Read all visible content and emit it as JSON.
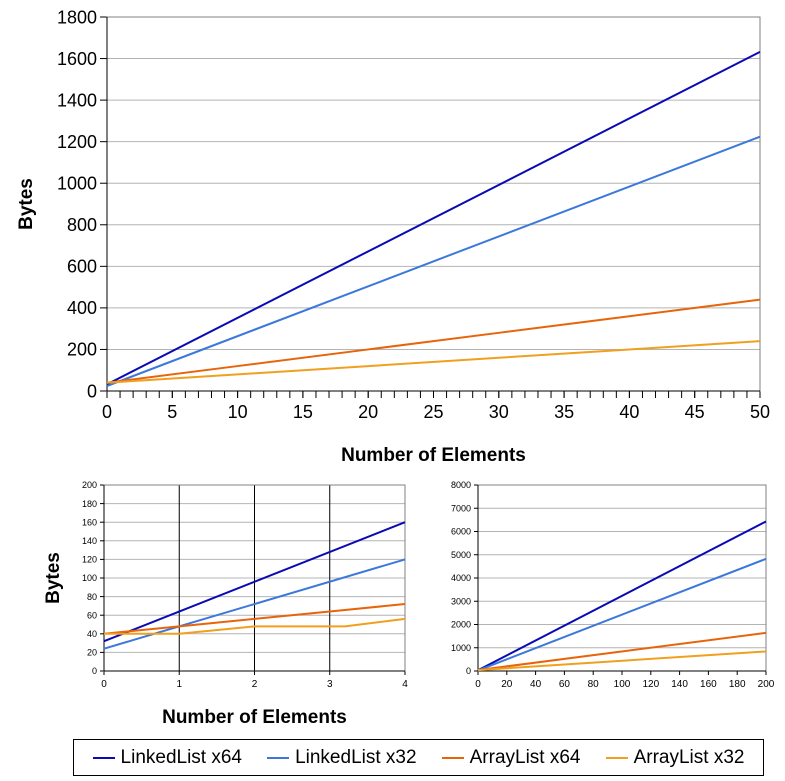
{
  "colors": {
    "linkedlist_x64": "#0a0ab4",
    "linkedlist_x32": "#3c78dc",
    "arraylist_x64": "#e8640a",
    "arraylist_x32": "#f0a01e"
  },
  "legend": {
    "items": [
      "LinkedList x64",
      "LinkedList x32",
      "ArrayList x64",
      "ArrayList x32"
    ]
  },
  "chart_data": [
    {
      "type": "line",
      "title": "",
      "xlabel": "Number of Elements",
      "ylabel": "Bytes",
      "xlim": [
        0,
        50
      ],
      "ylim": [
        0,
        1800
      ],
      "xticks": [
        "0",
        "5",
        "10",
        "15",
        "20",
        "25",
        "30",
        "35",
        "40",
        "45",
        "50"
      ],
      "yticks": [
        "0",
        "200",
        "400",
        "600",
        "800",
        "1000",
        "1200",
        "1400",
        "1600",
        "1800"
      ],
      "grid": "horizontal",
      "series": [
        {
          "name": "LinkedList x64",
          "x": [
            0,
            50
          ],
          "y": [
            32,
            1632
          ]
        },
        {
          "name": "LinkedList x32",
          "x": [
            0,
            50
          ],
          "y": [
            24,
            1224
          ]
        },
        {
          "name": "ArrayList x64",
          "x": [
            0,
            10,
            20,
            30,
            40,
            50
          ],
          "y": [
            40,
            120,
            200,
            280,
            360,
            440
          ]
        },
        {
          "name": "ArrayList x32",
          "x": [
            0,
            10,
            20,
            30,
            40,
            50
          ],
          "y": [
            40,
            80,
            120,
            160,
            200,
            240
          ]
        }
      ]
    },
    {
      "type": "line",
      "title": "",
      "xlabel": "Number of Elements",
      "ylabel": "Bytes",
      "xlim": [
        0,
        4
      ],
      "ylim": [
        0,
        200
      ],
      "xticks": [
        "0",
        "1",
        "2",
        "3",
        "4"
      ],
      "yticks": [
        "0",
        "20",
        "40",
        "60",
        "80",
        "100",
        "120",
        "140",
        "160",
        "180",
        "200"
      ],
      "grid": "both",
      "series": [
        {
          "name": "LinkedList x64",
          "x": [
            0,
            4
          ],
          "y": [
            32,
            160
          ]
        },
        {
          "name": "LinkedList x32",
          "x": [
            0,
            4
          ],
          "y": [
            24,
            120
          ]
        },
        {
          "name": "ArrayList x64",
          "x": [
            0,
            1,
            2,
            3,
            4
          ],
          "y": [
            40,
            48,
            56,
            64,
            72
          ]
        },
        {
          "name": "ArrayList x32",
          "x": [
            0,
            1,
            2,
            3.2,
            4
          ],
          "y": [
            40,
            40,
            48,
            48,
            56
          ]
        }
      ]
    },
    {
      "type": "line",
      "title": "",
      "xlabel": "",
      "ylabel": "",
      "xlim": [
        0,
        200
      ],
      "ylim": [
        0,
        8000
      ],
      "xticks": [
        "0",
        "20",
        "40",
        "60",
        "80",
        "100",
        "120",
        "140",
        "160",
        "180",
        "200"
      ],
      "yticks": [
        "0",
        "1000",
        "2000",
        "3000",
        "4000",
        "5000",
        "6000",
        "7000",
        "8000"
      ],
      "grid": "horizontal",
      "series": [
        {
          "name": "LinkedList x64",
          "x": [
            0,
            200
          ],
          "y": [
            32,
            6432
          ]
        },
        {
          "name": "LinkedList x32",
          "x": [
            0,
            200
          ],
          "y": [
            24,
            4824
          ]
        },
        {
          "name": "ArrayList x64",
          "x": [
            0,
            200
          ],
          "y": [
            40,
            1640
          ]
        },
        {
          "name": "ArrayList x32",
          "x": [
            0,
            200
          ],
          "y": [
            40,
            840
          ]
        }
      ]
    }
  ]
}
